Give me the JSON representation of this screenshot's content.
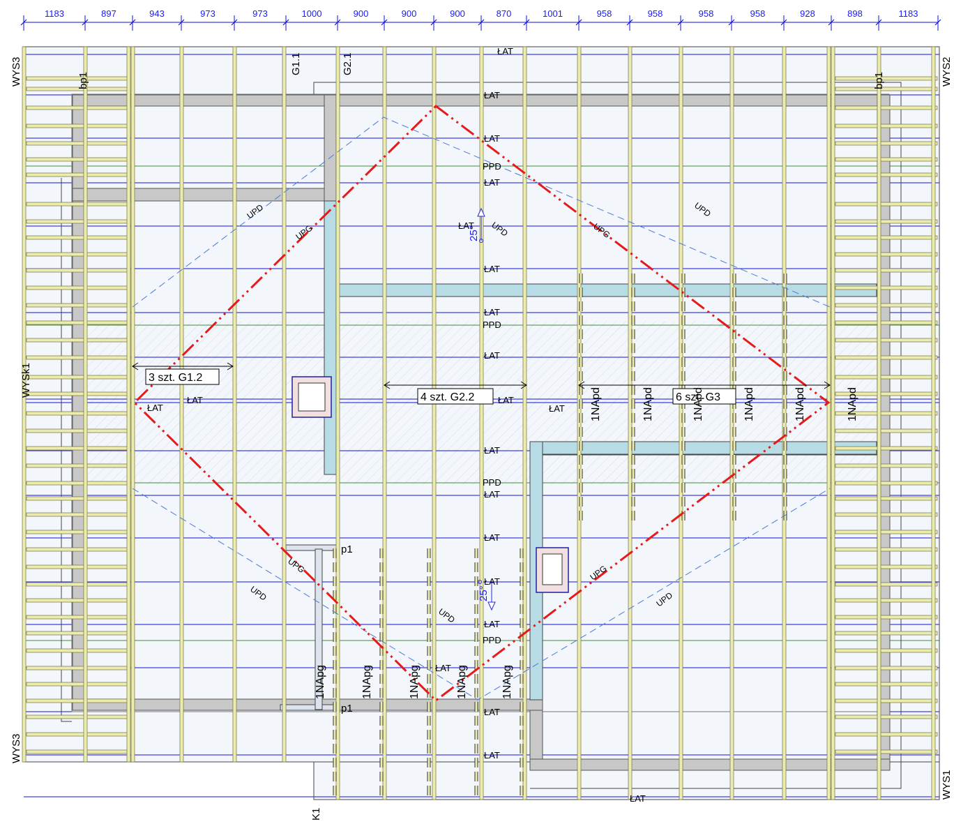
{
  "dimensions": [
    "1183",
    "897",
    "943",
    "973",
    "973",
    "1000",
    "900",
    "900",
    "900",
    "870",
    "1001",
    "958",
    "958",
    "958",
    "958",
    "928",
    "898",
    "1183"
  ],
  "axes": {
    "wys3_top": "WYS3",
    "wys3_bottom": "WYS3",
    "wys2": "WYS2",
    "wys1": "WYS1",
    "wysk1": "WYSk1",
    "k1": "K1"
  },
  "beam_labels": {
    "bp1_left": "bp1",
    "bp1_right": "bp1",
    "g11": "G1.1",
    "g21": "G2.1",
    "p1_top": "p1",
    "p1_bottom": "p1"
  },
  "group_labels": {
    "g12": "3 szt. G1.2",
    "g22": "4 szt. G2.2",
    "g3": "6 szt. G3"
  },
  "lat_label": "ŁAT",
  "ppd_label": "PPD",
  "upd_label": "UPD",
  "upg_label": "UPG",
  "napd_label": "1NApd",
  "napg_label": "1NApg",
  "slope_label": "25°",
  "colors": {
    "batten": "#ecebb0",
    "batten_stroke": "#6f6f48",
    "blue_line": "#1010dd",
    "green_line": "#3c8c3c",
    "red_ridge": "#e61a1a",
    "light_blue_beam": "#b8dce6",
    "grey_beam": "#c8c8c8"
  }
}
